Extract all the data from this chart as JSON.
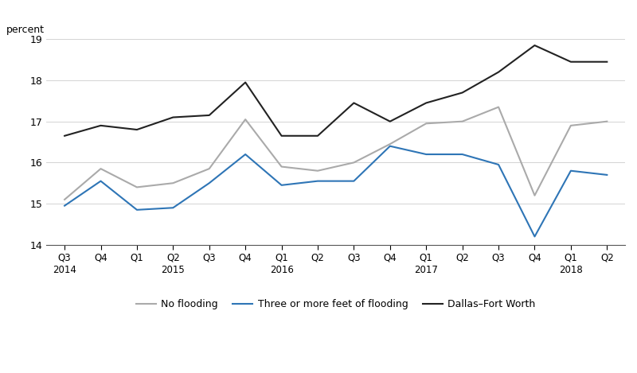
{
  "q_labels": [
    "Q3",
    "Q4",
    "Q1",
    "Q2",
    "Q3",
    "Q4",
    "Q1",
    "Q2",
    "Q3",
    "Q4",
    "Q1",
    "Q2",
    "Q3",
    "Q4",
    "Q1",
    "Q2"
  ],
  "year_row": [
    "2014",
    "",
    "",
    "2015",
    "",
    "",
    "2016",
    "",
    "",
    "",
    "2017",
    "",
    "",
    "",
    "2018",
    ""
  ],
  "no_flooding": [
    15.1,
    15.85,
    15.4,
    15.5,
    15.85,
    17.05,
    15.9,
    15.8,
    16.0,
    16.45,
    16.95,
    17.0,
    17.35,
    15.2,
    16.9,
    17.0
  ],
  "three_feet_flooding": [
    14.95,
    15.55,
    14.85,
    14.9,
    15.5,
    16.2,
    15.45,
    15.55,
    15.55,
    16.4,
    16.2,
    16.2,
    15.95,
    14.2,
    15.8,
    15.7
  ],
  "dallas_fort_worth": [
    16.65,
    16.9,
    16.8,
    17.1,
    17.15,
    17.95,
    16.65,
    16.65,
    17.45,
    17.0,
    17.45,
    17.7,
    18.2,
    18.85,
    18.45,
    18.45
  ],
  "no_flooding_color": "#aaaaaa",
  "three_feet_color": "#2e75b6",
  "dallas_color": "#222222",
  "ylabel": "percent",
  "ylim": [
    14,
    19
  ],
  "yticks": [
    14,
    15,
    16,
    17,
    18,
    19
  ],
  "background_color": "#ffffff",
  "legend_labels": [
    "No flooding",
    "Three or more feet of flooding",
    "Dallas–Fort Worth"
  ]
}
